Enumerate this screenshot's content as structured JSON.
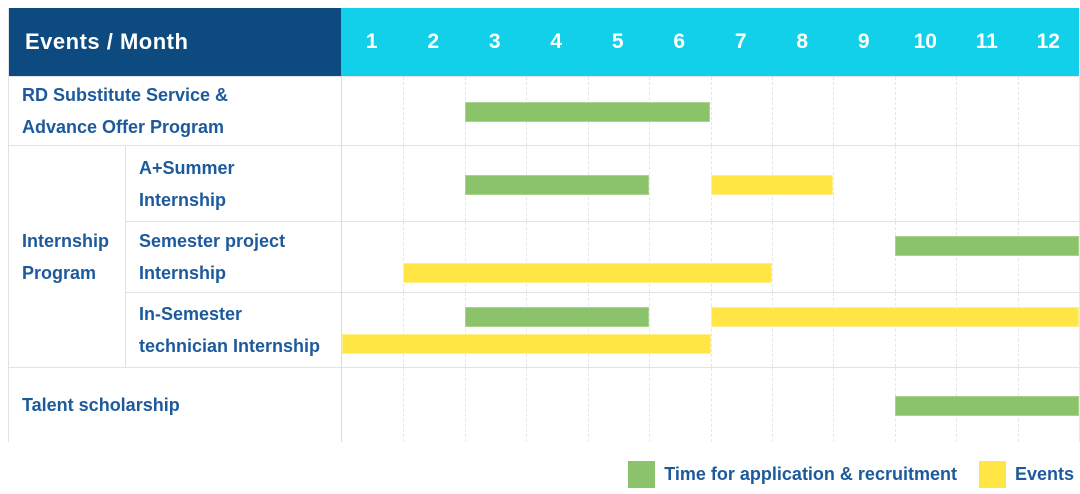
{
  "colors": {
    "header_bg": "#0d4a80",
    "month_header_bg": "#12d0ea",
    "header_text": "#ffffff",
    "label_text": "#1d5a9c",
    "application": "#8bc36a",
    "events": "#ffe645",
    "grid_line_dashed": "#e4e7ea",
    "row_border": "#dfe2e6"
  },
  "chart_data": {
    "type": "gantt",
    "corner_label": "Events / Month",
    "x_axis_label": "Month",
    "months": [
      "1",
      "2",
      "3",
      "4",
      "5",
      "6",
      "7",
      "8",
      "9",
      "10",
      "11",
      "12"
    ],
    "x_range": [
      1,
      12
    ],
    "grid": true,
    "internship_group_label": "Internship\nProgram",
    "rows": [
      {
        "label": "RD Substitute Service &\nAdvance Offer Program",
        "group": null,
        "bars": [
          {
            "type": "application",
            "start_month": 3,
            "end_month": 6,
            "lane": "single"
          }
        ]
      },
      {
        "label": "A+Summer\nInternship",
        "group": "Internship Program",
        "bars": [
          {
            "type": "application",
            "start_month": 3,
            "end_month": 5,
            "lane": "single"
          },
          {
            "type": "events",
            "start_month": 7,
            "end_month": 8,
            "lane": "single"
          }
        ]
      },
      {
        "label": "Semester project\nInternship",
        "group": "Internship Program",
        "bars": [
          {
            "type": "application",
            "start_month": 10,
            "end_month": 12,
            "lane": "upper"
          },
          {
            "type": "events",
            "start_month": 2,
            "end_month": 7,
            "lane": "lower"
          }
        ]
      },
      {
        "label": "In-Semester\ntechnician Internship",
        "group": "Internship Program",
        "bars": [
          {
            "type": "application",
            "start_month": 3,
            "end_month": 5,
            "lane": "upper"
          },
          {
            "type": "events",
            "start_month": 7,
            "end_month": 12,
            "lane": "upper"
          },
          {
            "type": "events",
            "start_month": 1,
            "end_month": 6,
            "lane": "lower"
          }
        ]
      },
      {
        "label": "Talent scholarship",
        "group": null,
        "bars": [
          {
            "type": "application",
            "start_month": 10,
            "end_month": 12,
            "lane": "single"
          }
        ]
      }
    ],
    "legend": [
      {
        "type": "application",
        "label": "Time for application & recruitment",
        "color": "#8bc36a"
      },
      {
        "type": "events",
        "label": "Events",
        "color": "#ffe645"
      }
    ],
    "legend_position": "bottom-right"
  }
}
